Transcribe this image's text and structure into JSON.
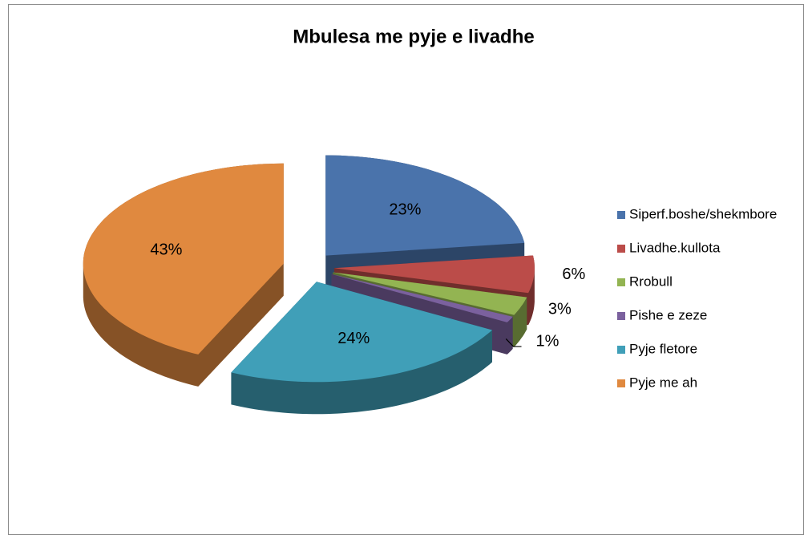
{
  "chart_data": {
    "type": "pie",
    "title": "Mbulesa me pyje e livadhe",
    "categories": [
      "Siperf.boshe/shekmbore",
      "Livadhe.kullota",
      "Rrobull",
      "Pishe e zeze",
      "Pyje fletore",
      "Pyje me ah"
    ],
    "values": [
      23,
      6,
      3,
      1,
      24,
      43
    ],
    "value_labels": [
      "23%",
      "6%",
      "3%",
      "1%",
      "24%",
      "43%"
    ],
    "colors": [
      "#4a73ab",
      "#bb4c49",
      "#93b452",
      "#7b619e",
      "#409fb8",
      "#e0893f"
    ],
    "legend": "right"
  }
}
